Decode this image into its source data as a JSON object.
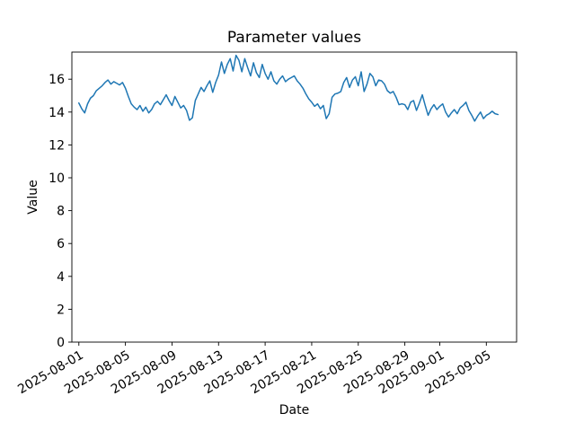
{
  "chart_data": {
    "type": "line",
    "title": "Parameter values",
    "xlabel": "Date",
    "ylabel": "Value",
    "legend": "none",
    "grid": false,
    "line_color": "#1f77b4",
    "axis_color": "#000000",
    "background_color": "#ffffff",
    "x_start_date": "2025-08-01",
    "x_step_hours": 6,
    "xlim_days": [
      -0.6,
      37.6
    ],
    "ylim": [
      0,
      17.65
    ],
    "yticks": [
      0,
      2,
      4,
      6,
      8,
      10,
      12,
      14,
      16
    ],
    "xticks": [
      {
        "label": "2025-08-01",
        "day": 0
      },
      {
        "label": "2025-08-05",
        "day": 4
      },
      {
        "label": "2025-08-09",
        "day": 8
      },
      {
        "label": "2025-08-13",
        "day": 12
      },
      {
        "label": "2025-08-17",
        "day": 16
      },
      {
        "label": "2025-08-21",
        "day": 20
      },
      {
        "label": "2025-08-25",
        "day": 24
      },
      {
        "label": "2025-08-29",
        "day": 28
      },
      {
        "label": "2025-09-01",
        "day": 31
      },
      {
        "label": "2025-09-05",
        "day": 35
      }
    ],
    "values": [
      14.55,
      14.2,
      13.95,
      14.5,
      14.85,
      15.0,
      15.3,
      15.45,
      15.6,
      15.8,
      15.95,
      15.7,
      15.85,
      15.75,
      15.65,
      15.8,
      15.45,
      14.95,
      14.5,
      14.3,
      14.15,
      14.4,
      14.05,
      14.3,
      13.95,
      14.15,
      14.5,
      14.65,
      14.45,
      14.75,
      15.05,
      14.7,
      14.4,
      14.95,
      14.6,
      14.25,
      14.4,
      14.1,
      13.5,
      13.65,
      14.7,
      15.1,
      15.5,
      15.25,
      15.6,
      15.9,
      15.2,
      15.8,
      16.25,
      17.05,
      16.35,
      16.9,
      17.25,
      16.5,
      17.45,
      17.15,
      16.45,
      17.25,
      16.7,
      16.2,
      17.0,
      16.4,
      16.1,
      16.9,
      16.35,
      16.0,
      16.45,
      15.9,
      15.7,
      16.0,
      16.2,
      15.85,
      16.0,
      16.1,
      16.2,
      15.9,
      15.7,
      15.45,
      15.1,
      14.8,
      14.6,
      14.35,
      14.5,
      14.2,
      14.4,
      13.6,
      13.9,
      14.9,
      15.1,
      15.15,
      15.25,
      15.8,
      16.1,
      15.5,
      15.95,
      16.15,
      15.6,
      16.45,
      15.25,
      15.7,
      16.35,
      16.15,
      15.6,
      15.95,
      15.9,
      15.7,
      15.3,
      15.15,
      15.25,
      14.9,
      14.45,
      14.5,
      14.45,
      14.15,
      14.6,
      14.7,
      14.1,
      14.55,
      15.05,
      14.4,
      13.8,
      14.2,
      14.45,
      14.15,
      14.35,
      14.5,
      14.0,
      13.7,
      13.95,
      14.15,
      13.9,
      14.25,
      14.4,
      14.6,
      14.1,
      13.8,
      13.45,
      13.75,
      14.0,
      13.6,
      13.8,
      13.9,
      14.05,
      13.9,
      13.85
    ]
  }
}
